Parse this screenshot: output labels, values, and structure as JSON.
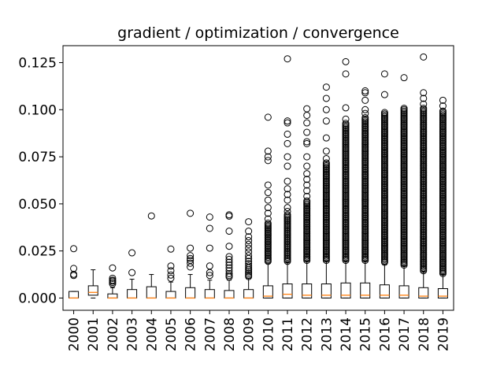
{
  "chart_data": {
    "type": "box",
    "title": "gradient / optimization / convergence",
    "xlabel": "",
    "ylabel": "",
    "ylim": [
      -0.0065,
      0.134
    ],
    "yticks": [
      0.0,
      0.025,
      0.05,
      0.075,
      0.1,
      0.125
    ],
    "ytick_labels": [
      "0.000",
      "0.025",
      "0.050",
      "0.075",
      "0.100",
      "0.125"
    ],
    "categories": [
      "2000",
      "2001",
      "2002",
      "2003",
      "2004",
      "2005",
      "2006",
      "2007",
      "2008",
      "2009",
      "2010",
      "2011",
      "2012",
      "2013",
      "2014",
      "2015",
      "2016",
      "2017",
      "2018",
      "2019"
    ],
    "boxes": [
      {
        "q1": 0.0,
        "median": 0.0,
        "q3": 0.0035,
        "whisker_low": 0.0,
        "whisker_high": 0.0035,
        "fliers": [
          0.0262,
          0.0157,
          0.0126,
          0.012
        ]
      },
      {
        "q1": 0.0015,
        "median": 0.003,
        "q3": 0.0065,
        "whisker_low": 0.0,
        "whisker_high": 0.015,
        "fliers": []
      },
      {
        "q1": 0.0,
        "median": 0.0,
        "q3": 0.0022,
        "whisker_low": 0.0,
        "whisker_high": 0.0055,
        "fliers": [
          0.016,
          0.0105,
          0.0095,
          0.009,
          0.0083,
          0.0075
        ]
      },
      {
        "q1": 0.0,
        "median": 0.0,
        "q3": 0.0045,
        "whisker_low": 0.0,
        "whisker_high": 0.01,
        "fliers": [
          0.024,
          0.0135
        ]
      },
      {
        "q1": 0.0,
        "median": 0.0,
        "q3": 0.006,
        "whisker_low": 0.0,
        "whisker_high": 0.0125,
        "fliers": [
          0.0436
        ]
      },
      {
        "q1": 0.0,
        "median": 0.0,
        "q3": 0.0035,
        "whisker_low": 0.0,
        "whisker_high": 0.0085,
        "fliers": [
          0.026,
          0.017,
          0.0145,
          0.0122,
          0.0105
        ]
      },
      {
        "q1": 0.0,
        "median": 0.0,
        "q3": 0.0055,
        "whisker_low": 0.0,
        "whisker_high": 0.0125,
        "fliers": [
          0.045,
          0.0265,
          0.0225,
          0.021,
          0.02,
          0.0185,
          0.0165
        ]
      },
      {
        "q1": 0.0,
        "median": 0.0,
        "q3": 0.0045,
        "whisker_low": 0.0,
        "whisker_high": 0.0095,
        "fliers": [
          0.043,
          0.037,
          0.0265,
          0.017,
          0.0135,
          0.012
        ]
      },
      {
        "q1": 0.0,
        "median": 0.0,
        "q3": 0.004,
        "whisker_low": 0.0,
        "whisker_high": 0.0095,
        "fliers": [
          0.0442,
          0.0435,
          0.0355,
          0.0275,
          0.022,
          0.0205,
          0.019,
          0.0175,
          0.016,
          0.0145,
          0.013,
          0.012,
          0.0112
        ]
      },
      {
        "q1": 0.0,
        "median": 0.0,
        "q3": 0.0045,
        "whisker_low": 0.0,
        "whisker_high": 0.0105,
        "fliers": [
          0.0405,
          0.0355,
          0.0325,
          0.0305,
          0.0285,
          0.0265,
          0.0245,
          0.0225,
          0.021,
          0.0195,
          0.0182,
          0.017,
          0.016,
          0.015,
          0.014,
          0.0131,
          0.0122,
          0.0114
        ]
      },
      {
        "q1": 0.0,
        "median": 0.001,
        "q3": 0.0065,
        "whisker_low": 0.0,
        "whisker_high": 0.0185,
        "fliers": [
          0.096,
          0.078,
          0.075,
          0.073,
          0.06,
          0.056,
          0.052,
          0.048,
          0.045,
          0.042
        ],
        "flier_band": [
          0.0195,
          0.04
        ]
      },
      {
        "q1": 0.0,
        "median": 0.002,
        "q3": 0.0075,
        "whisker_low": 0.0,
        "whisker_high": 0.019,
        "fliers": [
          0.127,
          0.094,
          0.093,
          0.087,
          0.082,
          0.075,
          0.07,
          0.062,
          0.058,
          0.055,
          0.052,
          0.048,
          0.046
        ],
        "flier_band": [
          0.0195,
          0.045
        ]
      },
      {
        "q1": 0.0,
        "median": 0.0015,
        "q3": 0.0075,
        "whisker_low": 0.0,
        "whisker_high": 0.0195,
        "fliers": [
          0.1005,
          0.097,
          0.093,
          0.088,
          0.083,
          0.082,
          0.075,
          0.07,
          0.066,
          0.063,
          0.06,
          0.057,
          0.054
        ],
        "flier_band": [
          0.02,
          0.052
        ]
      },
      {
        "q1": 0.0,
        "median": 0.0015,
        "q3": 0.0075,
        "whisker_low": 0.0,
        "whisker_high": 0.0195,
        "fliers": [
          0.112,
          0.106,
          0.1,
          0.094,
          0.085,
          0.078,
          0.074
        ],
        "flier_band": [
          0.02,
          0.072
        ]
      },
      {
        "q1": 0.0,
        "median": 0.0015,
        "q3": 0.008,
        "whisker_low": 0.0,
        "whisker_high": 0.0195,
        "fliers": [
          0.1255,
          0.119,
          0.101,
          0.095
        ],
        "flier_band": [
          0.02,
          0.093
        ]
      },
      {
        "q1": 0.0,
        "median": 0.0015,
        "q3": 0.008,
        "whisker_low": 0.0,
        "whisker_high": 0.0195,
        "fliers": [
          0.11,
          0.109,
          0.105,
          0.1,
          0.098
        ],
        "flier_band": [
          0.02,
          0.096
        ]
      },
      {
        "q1": 0.0,
        "median": 0.0015,
        "q3": 0.007,
        "whisker_low": 0.0,
        "whisker_high": 0.018,
        "fliers": [
          0.119,
          0.108
        ],
        "flier_band": [
          0.019,
          0.099
        ]
      },
      {
        "q1": 0.0,
        "median": 0.0015,
        "q3": 0.0065,
        "whisker_low": 0.0,
        "whisker_high": 0.017,
        "fliers": [
          0.117
        ],
        "flier_band": [
          0.0175,
          0.101
        ]
      },
      {
        "q1": 0.0,
        "median": 0.001,
        "q3": 0.0055,
        "whisker_low": 0.0,
        "whisker_high": 0.014,
        "fliers": [
          0.128,
          0.109,
          0.106,
          0.103
        ],
        "flier_band": [
          0.0145,
          0.101
        ]
      },
      {
        "q1": 0.0,
        "median": 0.001,
        "q3": 0.005,
        "whisker_low": 0.0,
        "whisker_high": 0.0125,
        "fliers": [
          0.105,
          0.102
        ],
        "flier_band": [
          0.013,
          0.1
        ]
      }
    ],
    "colors": {
      "box": "#000000",
      "median": "#ff7f0e",
      "background": "#ffffff"
    },
    "grid": false,
    "legend": "none"
  }
}
